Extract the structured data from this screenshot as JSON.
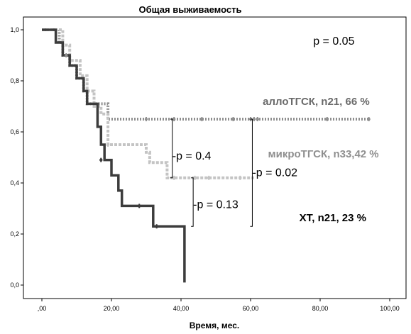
{
  "chart_data": {
    "type": "line",
    "subtype": "kaplan-meier",
    "title": "Общая выживаемость",
    "xlabel": "Время, мес.",
    "ylabel": "",
    "xlim": [
      0,
      100
    ],
    "ylim": [
      0,
      1
    ],
    "x_ticks": [
      0,
      20,
      40,
      60,
      80,
      100
    ],
    "x_tick_labels": [
      ",00",
      "20,00",
      "40,00",
      "60,00",
      "80,00",
      "100,00"
    ],
    "y_ticks": [
      0,
      0.2,
      0.4,
      0.6,
      0.8,
      1.0
    ],
    "y_tick_labels": [
      "0,0",
      "0,2",
      "0,4",
      "0,6",
      "0,8",
      "1,0"
    ],
    "grid": false,
    "series": [
      {
        "name": "аллоТГСК, n21, 66 %",
        "color": "#8f8f8f",
        "dash": "dotted",
        "steps": [
          [
            0,
            1.0
          ],
          [
            5,
            1.0
          ],
          [
            5,
            0.95
          ],
          [
            6,
            0.95
          ],
          [
            6,
            0.9
          ],
          [
            8,
            0.9
          ],
          [
            8,
            0.86
          ],
          [
            10,
            0.86
          ],
          [
            10,
            0.81
          ],
          [
            12,
            0.81
          ],
          [
            12,
            0.76
          ],
          [
            13,
            0.76
          ],
          [
            13,
            0.71
          ],
          [
            19,
            0.71
          ],
          [
            19,
            0.65
          ],
          [
            94,
            0.65
          ]
        ],
        "censored": [
          [
            7,
            0.9
          ],
          [
            30,
            0.65
          ],
          [
            38,
            0.65
          ],
          [
            46,
            0.65
          ],
          [
            55,
            0.65
          ],
          [
            60,
            0.65
          ],
          [
            61,
            0.65
          ],
          [
            62,
            0.65
          ],
          [
            82,
            0.65
          ],
          [
            94,
            0.65
          ]
        ]
      },
      {
        "name": "микроТГСК, n33,42 %",
        "color": "#c4c4c4",
        "dash": "dashed",
        "steps": [
          [
            0,
            1.0
          ],
          [
            6,
            1.0
          ],
          [
            6,
            0.94
          ],
          [
            8,
            0.94
          ],
          [
            8,
            0.88
          ],
          [
            11,
            0.88
          ],
          [
            11,
            0.82
          ],
          [
            13,
            0.82
          ],
          [
            13,
            0.76
          ],
          [
            15,
            0.76
          ],
          [
            15,
            0.7
          ],
          [
            17,
            0.7
          ],
          [
            17,
            0.67
          ],
          [
            19,
            0.67
          ],
          [
            19,
            0.55
          ],
          [
            30,
            0.55
          ],
          [
            30,
            0.52
          ],
          [
            31,
            0.52
          ],
          [
            31,
            0.48
          ],
          [
            36,
            0.48
          ],
          [
            36,
            0.42
          ],
          [
            61,
            0.42
          ]
        ],
        "censored": [
          [
            19,
            0.55
          ],
          [
            38,
            0.42
          ],
          [
            44,
            0.42
          ],
          [
            48,
            0.42
          ],
          [
            57,
            0.42
          ]
        ]
      },
      {
        "name": "ХТ, n21, 23 %",
        "color": "#3c3c3c",
        "dash": "solid",
        "steps": [
          [
            0,
            1.0
          ],
          [
            4,
            1.0
          ],
          [
            4,
            0.95
          ],
          [
            6,
            0.95
          ],
          [
            6,
            0.9
          ],
          [
            8,
            0.9
          ],
          [
            8,
            0.86
          ],
          [
            10,
            0.86
          ],
          [
            10,
            0.81
          ],
          [
            12,
            0.81
          ],
          [
            12,
            0.76
          ],
          [
            13,
            0.76
          ],
          [
            13,
            0.71
          ],
          [
            16,
            0.71
          ],
          [
            16,
            0.62
          ],
          [
            17,
            0.62
          ],
          [
            17,
            0.55
          ],
          [
            18,
            0.55
          ],
          [
            18,
            0.49
          ],
          [
            20,
            0.49
          ],
          [
            20,
            0.43
          ],
          [
            22,
            0.43
          ],
          [
            22,
            0.37
          ],
          [
            23,
            0.37
          ],
          [
            23,
            0.31
          ],
          [
            32,
            0.31
          ],
          [
            32,
            0.23
          ],
          [
            41,
            0.23
          ],
          [
            41,
            0.01
          ]
        ],
        "censored": [
          [
            17,
            0.49
          ],
          [
            28,
            0.31
          ],
          [
            33,
            0.23
          ]
        ]
      }
    ],
    "annotations": [
      {
        "text": "p = 0.05",
        "x": 78,
        "y": 0.955
      },
      {
        "text": "-p = 0.4",
        "x": 37.5,
        "y": 0.505
      },
      {
        "text": "-p = 0.02",
        "x": 60.5,
        "y": 0.44
      },
      {
        "text": "-p = 0.13",
        "x": 43.5,
        "y": 0.315
      }
    ],
    "brackets": [
      {
        "x": 37.5,
        "y_top": 0.65,
        "y_bottom": 0.42
      },
      {
        "x": 60.5,
        "y_top": 0.65,
        "y_bottom": 0.23
      },
      {
        "x": 43.5,
        "y_top": 0.42,
        "y_bottom": 0.23
      }
    ],
    "series_labels": [
      {
        "series": 0,
        "x": 63.5,
        "y": 0.705
      },
      {
        "series": 1,
        "x": 65,
        "y": 0.5
      },
      {
        "series": 2,
        "x": 74,
        "y": 0.25
      }
    ]
  }
}
